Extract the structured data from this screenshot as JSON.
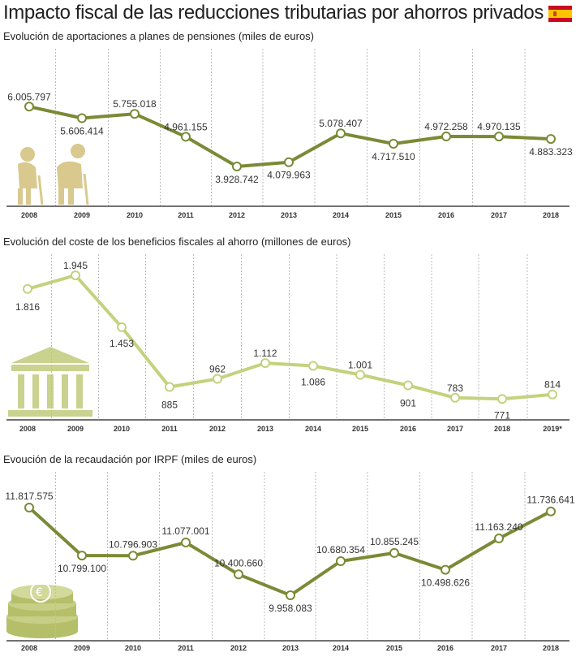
{
  "header": {
    "title": "Impacto fiscal de las reducciones tributarias por ahorros privados",
    "flag_icon": "spain-flag-icon"
  },
  "colors": {
    "dark_green": "#7a8a36",
    "light_green": "#c5d17e",
    "icon_tan": "#d9c98f",
    "bank_green": "#c9d28e",
    "coin_green": "#b5bf6a",
    "grid": "#bbbbbb"
  },
  "chart_data": [
    {
      "type": "line",
      "title": "Evolución de aportaciones a planes de pensiones (miles de euros)",
      "icon": "elderly-couple-icon",
      "x": [
        "2008",
        "2009",
        "2010",
        "2011",
        "2012",
        "2013",
        "2014",
        "2015",
        "2016",
        "2017",
        "2018"
      ],
      "values": [
        6005797,
        5606414,
        5755018,
        4961155,
        3928742,
        4079963,
        5078407,
        4717510,
        4972258,
        4970135,
        4883323
      ],
      "labels": [
        "6.005.797",
        "5.606.414",
        "5.755.018",
        "4.961.155",
        "3.928.742",
        "4.079.963",
        "5.078.407",
        "4.717.510",
        "4.972.258",
        "4.970.135",
        "4.883.323"
      ],
      "ylim": [
        3000000,
        7000000
      ]
    },
    {
      "type": "line",
      "title": "Evolución del coste de los beneficios fiscales al ahorro (millones de euros)",
      "icon": "bank-building-icon",
      "x": [
        "2008",
        "2009",
        "2010",
        "2011",
        "2012",
        "2013",
        "2014",
        "2015",
        "2016",
        "2017",
        "2018",
        "2019*"
      ],
      "values": [
        1816,
        1945,
        1453,
        885,
        962,
        1112,
        1086,
        1001,
        901,
        783,
        771,
        814
      ],
      "labels": [
        "1.816",
        "1.945",
        "1.453",
        "885",
        "962",
        "1.112",
        "1.086",
        "1.001",
        "901",
        "783",
        "771",
        "814"
      ],
      "ylim": [
        650,
        2100
      ]
    },
    {
      "type": "line",
      "title": "Evoución de la recaudación por IRPF (miles de euros)",
      "icon": "euro-coins-icon",
      "x": [
        "2008",
        "2009",
        "2010",
        "2011",
        "2012",
        "2013",
        "2014",
        "2015",
        "2016",
        "2017",
        "2018"
      ],
      "values": [
        11817575,
        10799100,
        10796903,
        11077001,
        10400660,
        9958083,
        10680354,
        10855245,
        10498626,
        11163240,
        11736641
      ],
      "labels": [
        "11.817.575",
        "10.799.100",
        "10.796.903",
        "11.077.001",
        "10.400.660",
        "9.958.083",
        "10.680.354",
        "10.855.245",
        "10.498.626",
        "11.163.240",
        "11.736.641"
      ],
      "ylim": [
        9200000,
        12300000
      ]
    }
  ]
}
